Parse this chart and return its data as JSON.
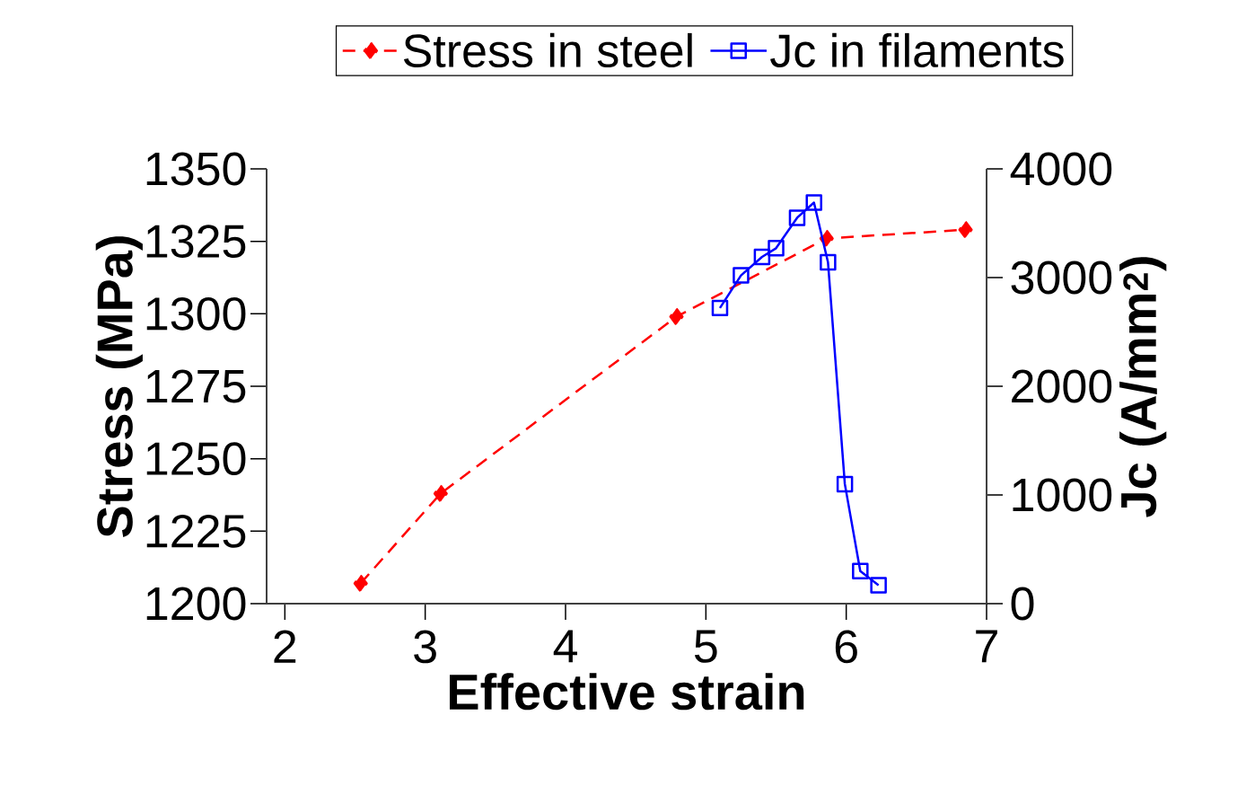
{
  "chart_data": {
    "type": "line",
    "xlabel": "Effective strain",
    "ylabel": "Stress (MPa)",
    "y2label": "Jc (A/mm$^{2}$)",
    "xlim": [
      1.87,
      7
    ],
    "xticks": [
      2,
      3,
      4,
      5,
      6,
      7
    ],
    "ylim": [
      1200,
      1350
    ],
    "yticks": [
      1200,
      1225,
      1250,
      1275,
      1300,
      1325,
      1350
    ],
    "y2lim": [
      0,
      4000
    ],
    "y2ticks": [
      0,
      1000,
      2000,
      3000,
      4000
    ],
    "legend": "top",
    "grid": false,
    "series": [
      {
        "name": "Stress in steel",
        "color": "#ff0000",
        "marker": "diamond",
        "line_style": "dashed",
        "x": [
          2.54,
          3.11,
          4.79,
          5.86,
          6.85
        ],
        "values": [
          1207,
          1238,
          1299,
          1326,
          1329
        ]
      },
      {
        "name": "Jc in filaments",
        "color": "#0000ff",
        "marker": "square",
        "line_style": "solid",
        "axis": "y2",
        "x": [
          5.1,
          5.25,
          5.4,
          5.5,
          5.65,
          5.77,
          5.87,
          5.99,
          6.1,
          6.23
        ],
        "values": [
          2720,
          3020,
          3190,
          3270,
          3550,
          3690,
          3140,
          1100,
          300,
          170
        ]
      }
    ]
  }
}
